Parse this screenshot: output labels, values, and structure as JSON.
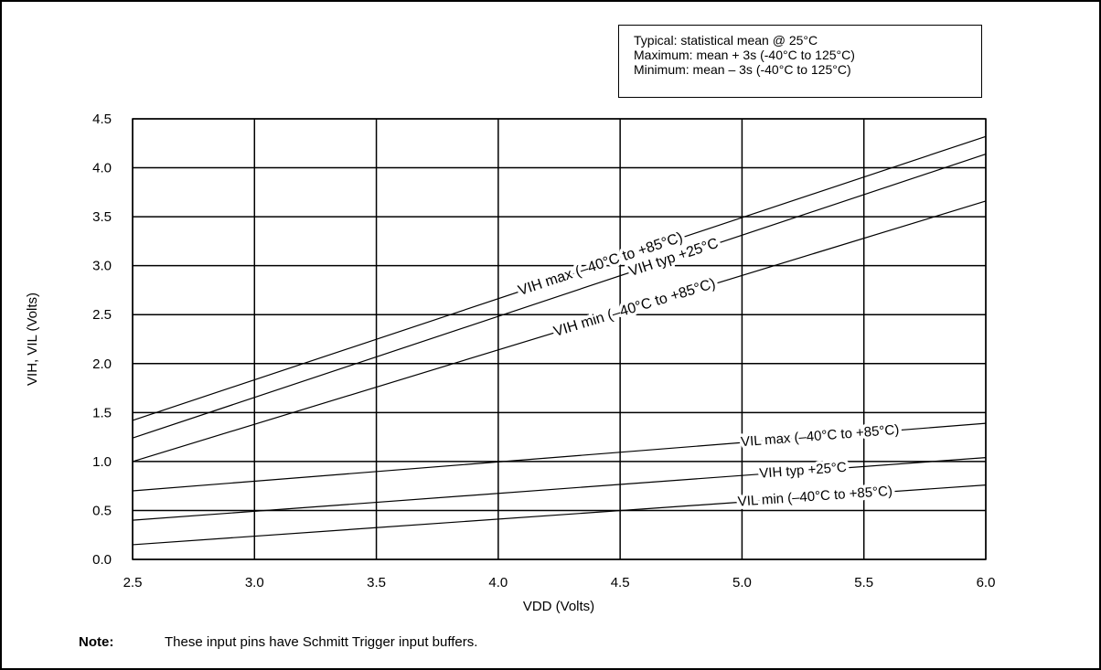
{
  "legend": {
    "lines": [
      "Typical:  statistical mean @ 25°C",
      "Maximum:  mean + 3s (-40°C to 125°C)",
      "Minimum:  mean – 3s (-40°C to 125°C)"
    ]
  },
  "note": {
    "label": "Note:",
    "text": "These input pins have Schmitt Trigger input buffers."
  },
  "chart_data": {
    "type": "line",
    "title": "",
    "xlabel": "VDD (Volts)",
    "ylabel": "VIH, VIL (Volts)",
    "xlim": [
      2.5,
      6.0
    ],
    "ylim": [
      0.0,
      4.5
    ],
    "x_ticks": [
      "2.5",
      "3.0",
      "3.5",
      "4.0",
      "4.5",
      "5.0",
      "5.5",
      "6.0"
    ],
    "y_ticks": [
      "0.0",
      "0.5",
      "1.0",
      "1.5",
      "2.0",
      "2.5",
      "3.0",
      "3.5",
      "4.0",
      "4.5"
    ],
    "grid": true,
    "series": [
      {
        "name": "VIH max (–40°C to +85°C)",
        "x": [
          2.5,
          6.0
        ],
        "y": [
          1.42,
          4.32
        ]
      },
      {
        "name": "VIH typ +25°C",
        "x": [
          2.5,
          6.0
        ],
        "y": [
          1.24,
          4.14
        ]
      },
      {
        "name": "VIH min (–40°C to +85°C)",
        "x": [
          2.5,
          6.0
        ],
        "y": [
          1.0,
          3.66
        ]
      },
      {
        "name": "VIL max (–40°C to +85°C)",
        "x": [
          2.5,
          6.0
        ],
        "y": [
          0.7,
          1.39
        ]
      },
      {
        "name": "VIH typ +25°C",
        "x": [
          2.5,
          6.0
        ],
        "y": [
          0.4,
          1.04
        ]
      },
      {
        "name": "VIL min (–40°C to +85°C)",
        "x": [
          2.5,
          6.0
        ],
        "y": [
          0.15,
          0.76
        ]
      }
    ]
  }
}
